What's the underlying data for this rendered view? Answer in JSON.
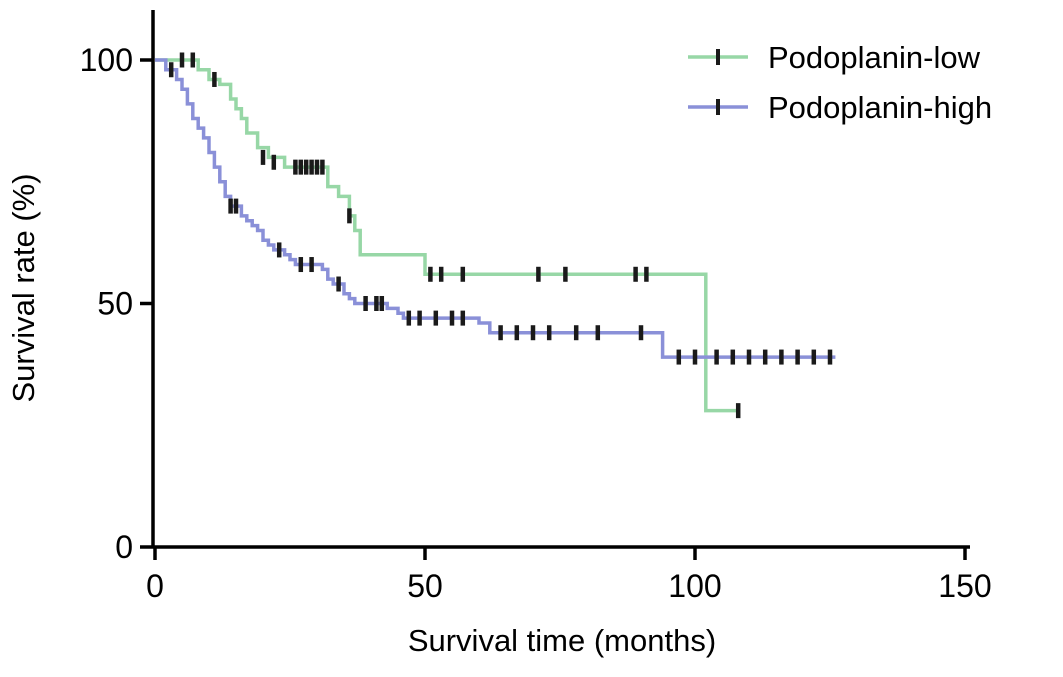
{
  "chart_data": {
    "type": "line",
    "subtype": "kaplan-meier-step",
    "title": "",
    "xlabel": "Survival time (months)",
    "ylabel": "Survival rate (%)",
    "xlim": [
      0,
      150
    ],
    "ylim": [
      0,
      100
    ],
    "xticks": [
      0,
      50,
      100,
      150
    ],
    "yticks": [
      0,
      50,
      100
    ],
    "grid": false,
    "legend_position": "top-right",
    "axis_color": "#000000",
    "censor_color": "#1a1a1a",
    "background_color": "#ffffff",
    "series": [
      {
        "name": "Podoplanin-low",
        "color": "#97d7a6",
        "end_x": 108,
        "steps": [
          [
            0,
            100
          ],
          [
            8,
            98
          ],
          [
            10,
            96
          ],
          [
            12,
            95
          ],
          [
            14,
            92
          ],
          [
            15,
            90
          ],
          [
            16,
            88
          ],
          [
            17,
            85
          ],
          [
            19,
            82
          ],
          [
            21,
            80
          ],
          [
            24,
            78
          ],
          [
            32,
            74
          ],
          [
            34,
            72
          ],
          [
            36,
            68
          ],
          [
            37,
            65
          ],
          [
            38,
            60
          ],
          [
            50,
            56
          ],
          [
            102,
            28
          ]
        ],
        "censors": [
          [
            5,
            100
          ],
          [
            7,
            100
          ],
          [
            11,
            96
          ],
          [
            20,
            80
          ],
          [
            22,
            79
          ],
          [
            26,
            78
          ],
          [
            27,
            78
          ],
          [
            28,
            78
          ],
          [
            29,
            78
          ],
          [
            30,
            78
          ],
          [
            31,
            78
          ],
          [
            36,
            68
          ],
          [
            51,
            56
          ],
          [
            53,
            56
          ],
          [
            57,
            56
          ],
          [
            71,
            56
          ],
          [
            76,
            56
          ],
          [
            89,
            56
          ],
          [
            91,
            56
          ],
          [
            108,
            28
          ]
        ]
      },
      {
        "name": "Podoplanin-high",
        "color": "#8a90d8",
        "end_x": 126,
        "steps": [
          [
            0,
            100
          ],
          [
            2,
            98
          ],
          [
            4,
            96
          ],
          [
            5,
            94
          ],
          [
            6,
            91
          ],
          [
            7,
            88
          ],
          [
            8,
            86
          ],
          [
            9,
            84
          ],
          [
            10,
            81
          ],
          [
            11,
            78
          ],
          [
            12,
            75
          ],
          [
            13,
            72
          ],
          [
            14,
            70
          ],
          [
            16,
            68
          ],
          [
            17,
            67
          ],
          [
            18,
            66
          ],
          [
            19,
            65
          ],
          [
            20,
            63
          ],
          [
            21,
            62
          ],
          [
            22,
            61
          ],
          [
            24,
            60
          ],
          [
            25,
            59
          ],
          [
            26,
            58
          ],
          [
            31,
            57
          ],
          [
            32,
            55
          ],
          [
            33,
            54
          ],
          [
            35,
            52
          ],
          [
            36,
            51
          ],
          [
            37,
            50
          ],
          [
            43,
            49
          ],
          [
            45,
            48
          ],
          [
            46,
            47
          ],
          [
            60,
            46
          ],
          [
            62,
            44
          ],
          [
            94,
            39
          ]
        ],
        "censors": [
          [
            3,
            98
          ],
          [
            14,
            70
          ],
          [
            15,
            70
          ],
          [
            23,
            61
          ],
          [
            27,
            58
          ],
          [
            29,
            58
          ],
          [
            34,
            54
          ],
          [
            39,
            50
          ],
          [
            41,
            50
          ],
          [
            42,
            50
          ],
          [
            47,
            47
          ],
          [
            49,
            47
          ],
          [
            52,
            47
          ],
          [
            55,
            47
          ],
          [
            57,
            47
          ],
          [
            64,
            44
          ],
          [
            67,
            44
          ],
          [
            70,
            44
          ],
          [
            73,
            44
          ],
          [
            78,
            44
          ],
          [
            82,
            44
          ],
          [
            90,
            44
          ],
          [
            97,
            39
          ],
          [
            100,
            39
          ],
          [
            104,
            39
          ],
          [
            107,
            39
          ],
          [
            110,
            39
          ],
          [
            113,
            39
          ],
          [
            116,
            39
          ],
          [
            119,
            39
          ],
          [
            122,
            39
          ],
          [
            125,
            39
          ]
        ]
      }
    ]
  }
}
